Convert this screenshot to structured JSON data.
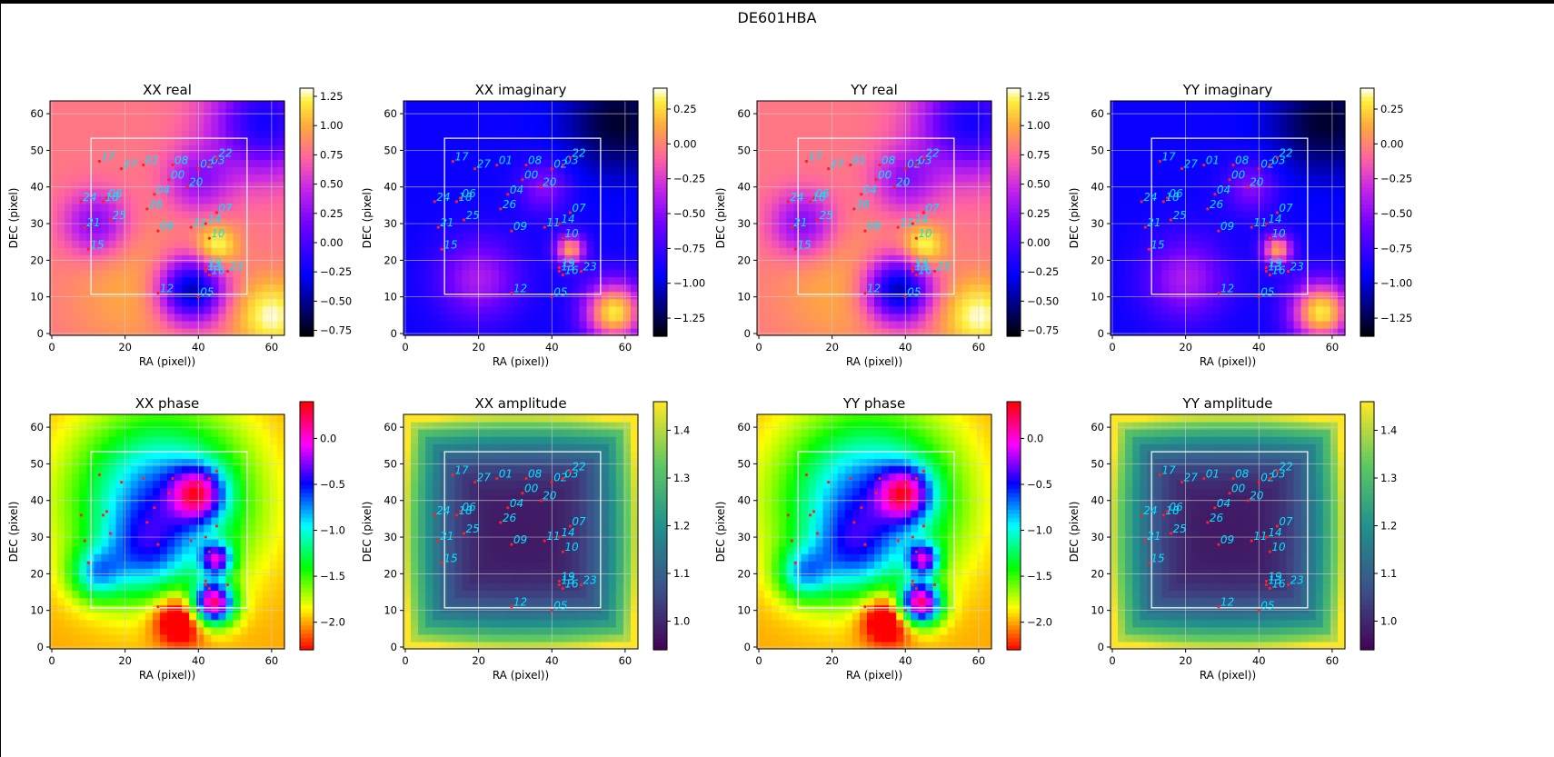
{
  "figure": {
    "title": "DE601HBA"
  },
  "chart_data": [
    {
      "type": "heatmap",
      "title": "XX real",
      "xlabel": "RA (pixel))",
      "ylabel": "DEC (pixel)",
      "xlim": [
        -0.5,
        63.5
      ],
      "ylim": [
        -0.5,
        63.5
      ],
      "xticks": [
        0,
        20,
        40,
        60
      ],
      "yticks": [
        0,
        10,
        20,
        30,
        40,
        50,
        60
      ],
      "colormap": "gnuplot2",
      "colorbar": {
        "min": -0.8,
        "max": 1.32,
        "ticks": [
          -0.75,
          -0.5,
          -0.25,
          0.0,
          0.25,
          0.5,
          0.75,
          1.0,
          1.25
        ],
        "tick_labels": [
          "−0.75",
          "−0.50",
          "−0.25",
          "0.00",
          "0.25",
          "0.50",
          "0.75",
          "1.00",
          "1.25"
        ]
      }
    },
    {
      "type": "heatmap",
      "title": "XX imaginary",
      "xlabel": "RA (pixel))",
      "ylabel": "DEC (pixel)",
      "xlim": [
        -0.5,
        63.5
      ],
      "ylim": [
        -0.5,
        63.5
      ],
      "xticks": [
        0,
        20,
        40,
        60
      ],
      "yticks": [
        0,
        10,
        20,
        30,
        40,
        50,
        60
      ],
      "colormap": "gnuplot2",
      "colorbar": {
        "min": -1.38,
        "max": 0.4,
        "ticks": [
          -1.25,
          -1.0,
          -0.75,
          -0.5,
          -0.25,
          0.0,
          0.25
        ],
        "tick_labels": [
          "−1.25",
          "−1.00",
          "−0.75",
          "−0.50",
          "−0.25",
          "0.00",
          "0.25"
        ]
      }
    },
    {
      "type": "heatmap",
      "title": "YY real",
      "xlabel": "RA (pixel))",
      "ylabel": "DEC (pixel)",
      "xlim": [
        -0.5,
        63.5
      ],
      "ylim": [
        -0.5,
        63.5
      ],
      "xticks": [
        0,
        20,
        40,
        60
      ],
      "yticks": [
        0,
        10,
        20,
        30,
        40,
        50,
        60
      ],
      "colormap": "gnuplot2",
      "colorbar": {
        "min": -0.8,
        "max": 1.32,
        "ticks": [
          -0.75,
          -0.5,
          -0.25,
          0.0,
          0.25,
          0.5,
          0.75,
          1.0,
          1.25
        ],
        "tick_labels": [
          "−0.75",
          "−0.50",
          "−0.25",
          "0.00",
          "0.25",
          "0.50",
          "0.75",
          "1.00",
          "1.25"
        ]
      }
    },
    {
      "type": "heatmap",
      "title": "YY imaginary",
      "xlabel": "RA (pixel))",
      "ylabel": "DEC (pixel)",
      "xlim": [
        -0.5,
        63.5
      ],
      "ylim": [
        -0.5,
        63.5
      ],
      "xticks": [
        0,
        20,
        40,
        60
      ],
      "yticks": [
        0,
        10,
        20,
        30,
        40,
        50,
        60
      ],
      "colormap": "gnuplot2",
      "colorbar": {
        "min": -1.38,
        "max": 0.4,
        "ticks": [
          -1.25,
          -1.0,
          -0.75,
          -0.5,
          -0.25,
          0.0,
          0.25
        ],
        "tick_labels": [
          "−1.25",
          "−1.00",
          "−0.75",
          "−0.50",
          "−0.25",
          "0.00",
          "0.25"
        ]
      }
    },
    {
      "type": "heatmap",
      "title": "XX phase",
      "xlabel": "RA (pixel))",
      "ylabel": "DEC (pixel)",
      "xlim": [
        -0.5,
        63.5
      ],
      "ylim": [
        -0.5,
        63.5
      ],
      "xticks": [
        0,
        20,
        40,
        60
      ],
      "yticks": [
        0,
        10,
        20,
        30,
        40,
        50,
        60
      ],
      "colormap": "hsv",
      "colorbar": {
        "min": -2.3,
        "max": 0.4,
        "ticks": [
          -2.0,
          -1.5,
          -1.0,
          -0.5,
          0.0
        ],
        "tick_labels": [
          "−2.0",
          "−1.5",
          "−1.0",
          "−0.5",
          "0.0"
        ]
      }
    },
    {
      "type": "heatmap",
      "title": "XX amplitude",
      "xlabel": "RA (pixel))",
      "ylabel": "DEC (pixel)",
      "xlim": [
        -0.5,
        63.5
      ],
      "ylim": [
        -0.5,
        63.5
      ],
      "xticks": [
        0,
        20,
        40,
        60
      ],
      "yticks": [
        0,
        10,
        20,
        30,
        40,
        50,
        60
      ],
      "colormap": "viridis",
      "colorbar": {
        "min": 0.94,
        "max": 1.46,
        "ticks": [
          1.0,
          1.1,
          1.2,
          1.3,
          1.4
        ],
        "tick_labels": [
          "1.0",
          "1.1",
          "1.2",
          "1.3",
          "1.4"
        ]
      }
    },
    {
      "type": "heatmap",
      "title": "YY phase",
      "xlabel": "RA (pixel))",
      "ylabel": "DEC (pixel)",
      "xlim": [
        -0.5,
        63.5
      ],
      "ylim": [
        -0.5,
        63.5
      ],
      "xticks": [
        0,
        20,
        40,
        60
      ],
      "yticks": [
        0,
        10,
        20,
        30,
        40,
        50,
        60
      ],
      "colormap": "hsv",
      "colorbar": {
        "min": -2.3,
        "max": 0.4,
        "ticks": [
          -2.0,
          -1.5,
          -1.0,
          -0.5,
          0.0
        ],
        "tick_labels": [
          "−2.0",
          "−1.5",
          "−1.0",
          "−0.5",
          "0.0"
        ]
      }
    },
    {
      "type": "heatmap",
      "title": "YY amplitude",
      "xlabel": "RA (pixel))",
      "ylabel": "DEC (pixel)",
      "xlim": [
        -0.5,
        63.5
      ],
      "ylim": [
        -0.5,
        63.5
      ],
      "xticks": [
        0,
        20,
        40,
        60
      ],
      "yticks": [
        0,
        10,
        20,
        30,
        40,
        50,
        60
      ],
      "colormap": "viridis",
      "colorbar": {
        "min": 0.94,
        "max": 1.46,
        "ticks": [
          1.0,
          1.1,
          1.2,
          1.3,
          1.4
        ],
        "tick_labels": [
          "1.0",
          "1.1",
          "1.2",
          "1.3",
          "1.4"
        ]
      }
    }
  ],
  "inner_box": {
    "x_range": [
      10.7,
      53.3
    ],
    "y_range": [
      10.7,
      53.3
    ]
  },
  "sources": [
    {
      "label": "00",
      "x": 32,
      "y": 42
    },
    {
      "label": "01",
      "x": 25,
      "y": 46
    },
    {
      "label": "02",
      "x": 40,
      "y": 45
    },
    {
      "label": "03",
      "x": 43,
      "y": 46
    },
    {
      "label": "04",
      "x": 28,
      "y": 38
    },
    {
      "label": "05",
      "x": 40,
      "y": 10
    },
    {
      "label": "06",
      "x": 15,
      "y": 37
    },
    {
      "label": "07",
      "x": 45,
      "y": 33
    },
    {
      "label": "08",
      "x": 33,
      "y": 46
    },
    {
      "label": "09",
      "x": 29,
      "y": 28
    },
    {
      "label": "10",
      "x": 43,
      "y": 26
    },
    {
      "label": "11",
      "x": 38,
      "y": 29
    },
    {
      "label": "12",
      "x": 29,
      "y": 11
    },
    {
      "label": "13",
      "x": 42,
      "y": 17
    },
    {
      "label": "14",
      "x": 42,
      "y": 30
    },
    {
      "label": "15",
      "x": 10,
      "y": 23
    },
    {
      "label": "16",
      "x": 43,
      "y": 16
    },
    {
      "label": "17",
      "x": 13,
      "y": 47
    },
    {
      "label": "18",
      "x": 14,
      "y": 36
    },
    {
      "label": "19",
      "x": 42,
      "y": 18
    },
    {
      "label": "20",
      "x": 37,
      "y": 40
    },
    {
      "label": "21",
      "x": 9,
      "y": 29
    },
    {
      "label": "22",
      "x": 45,
      "y": 48
    },
    {
      "label": "23",
      "x": 48,
      "y": 17
    },
    {
      "label": "24",
      "x": 8,
      "y": 36
    },
    {
      "label": "25",
      "x": 16,
      "y": 31
    },
    {
      "label": "26",
      "x": 26,
      "y": 34
    },
    {
      "label": "27",
      "x": 19,
      "y": 45
    }
  ],
  "colors": {
    "source_label": "#00e5ff",
    "source_marker": "#ff2020",
    "box": "#ffffff",
    "grid": "#d0d0d0"
  }
}
